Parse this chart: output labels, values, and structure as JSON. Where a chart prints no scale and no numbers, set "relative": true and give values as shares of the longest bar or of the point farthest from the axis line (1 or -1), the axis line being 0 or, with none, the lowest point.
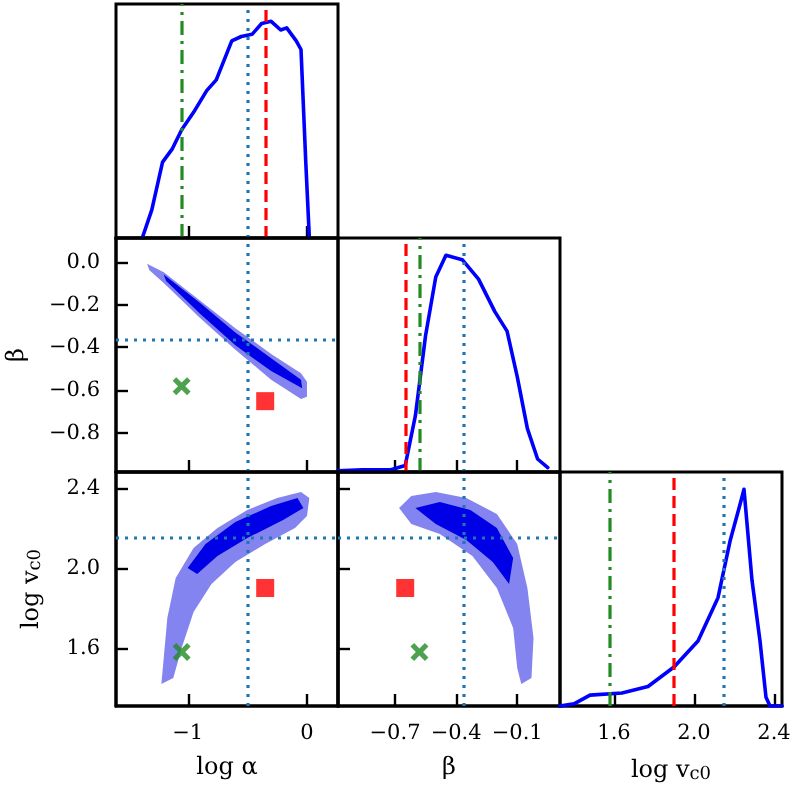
{
  "chart_data": [
    {
      "type": "line",
      "relative": true,
      "xlim": [
        -1.6,
        0.26
      ],
      "xticks": [
        -1,
        0
      ],
      "tick_labels": false,
      "x": [
        -1.38,
        -1.3,
        -1.21,
        -1.13,
        -1.05,
        -0.95,
        -0.84,
        -0.76,
        -0.63,
        -0.55,
        -0.46,
        -0.38,
        -0.3,
        -0.22,
        -0.17,
        -0.09,
        -0.05,
        -0.01,
        0.02
      ],
      "series": [
        {
          "color": "#0000ff",
          "values": [
            0,
            0.13,
            0.35,
            0.41,
            0.5,
            0.58,
            0.68,
            0.73,
            0.91,
            0.93,
            0.94,
            0.99,
            1.0,
            0.96,
            0.97,
            0.91,
            0.87,
            0.35,
            0
          ]
        }
      ],
      "ref_lines": [
        {
          "axis": "x",
          "value": -1.05,
          "color": "#228b22",
          "line_style": "dashdot"
        },
        {
          "axis": "x",
          "value": -0.5,
          "color": "#1f77b4",
          "line_style": "dotted"
        },
        {
          "axis": "x",
          "value": -0.35,
          "color": "#ff0000",
          "line_style": "dashed"
        }
      ]
    },
    {
      "type": "area",
      "ylabel": "β",
      "xlim": [
        -1.6,
        0.26
      ],
      "ylim": [
        -0.98,
        0.11
      ],
      "xticks": [
        -1,
        0
      ],
      "yticks": [
        {
          "value": 0,
          "label": "0.0"
        },
        {
          "value": -0.2,
          "label": "−0.2"
        },
        {
          "value": -0.4,
          "label": "−0.4"
        },
        {
          "value": -0.6,
          "label": "−0.6"
        },
        {
          "value": -0.8,
          "label": "−0.8"
        }
      ],
      "tick_labels": "y",
      "series": [
        {
          "type": "area",
          "color": "#8484f0",
          "x": [
            -1.34,
            -1.2,
            -0.9,
            -0.6,
            -0.3,
            -0.05,
            0.0,
            0.0,
            -0.05,
            -0.3,
            -0.6,
            -0.9,
            -1.2,
            -1.32
          ],
          "values": [
            -0.01,
            -0.05,
            -0.18,
            -0.31,
            -0.43,
            -0.52,
            -0.56,
            -0.63,
            -0.64,
            -0.55,
            -0.41,
            -0.26,
            -0.1,
            -0.04
          ]
        },
        {
          "type": "area",
          "color": "#0000e6",
          "x": [
            -1.2,
            -0.9,
            -0.6,
            -0.3,
            -0.05,
            -0.04,
            -0.3,
            -0.6,
            -0.9,
            -1.18
          ],
          "values": [
            -0.06,
            -0.19,
            -0.33,
            -0.45,
            -0.55,
            -0.59,
            -0.51,
            -0.39,
            -0.24,
            -0.09
          ]
        },
        {
          "type": "scatter",
          "marker": "cross",
          "color": "#228b22",
          "x": [
            -1.05
          ],
          "values": [
            -0.58
          ]
        },
        {
          "type": "scatter",
          "marker": "square",
          "color": "#ff0000",
          "x": [
            -0.35
          ],
          "values": [
            -0.65
          ]
        }
      ],
      "ref_lines": [
        {
          "axis": "x",
          "value": -0.5,
          "color": "#1f77b4",
          "line_style": "dotted"
        },
        {
          "axis": "y",
          "value": -0.36,
          "color": "#1f77b4",
          "line_style": "dotted"
        }
      ]
    },
    {
      "type": "line",
      "relative": true,
      "xlim": [
        -0.98,
        0.11
      ],
      "xticks": [
        -0.7,
        -0.4,
        -0.1
      ],
      "tick_labels": false,
      "x": [
        -0.98,
        -0.86,
        -0.72,
        -0.65,
        -0.6,
        -0.55,
        -0.5,
        -0.45,
        -0.37,
        -0.29,
        -0.21,
        -0.15,
        -0.1,
        -0.05,
        0.0,
        0.05
      ],
      "series": [
        {
          "color": "#0000ff",
          "values": [
            0.005,
            0.01,
            0.01,
            0.03,
            0.26,
            0.63,
            0.9,
            1.0,
            0.98,
            0.89,
            0.74,
            0.65,
            0.44,
            0.2,
            0.06,
            0.02
          ]
        }
      ],
      "ref_lines": [
        {
          "axis": "x",
          "value": -0.65,
          "color": "#ff0000",
          "line_style": "dashed"
        },
        {
          "axis": "x",
          "value": -0.58,
          "color": "#228b22",
          "line_style": "dashdot"
        },
        {
          "axis": "x",
          "value": -0.36,
          "color": "#1f77b4",
          "line_style": "dotted"
        }
      ]
    },
    {
      "type": "area",
      "xlabel": "log α",
      "ylabel": "log v$_{c0}$",
      "xlim": [
        -1.6,
        0.26
      ],
      "ylim": [
        1.31,
        2.48
      ],
      "xticks": [
        {
          "value": -1,
          "label": "−1"
        },
        0
      ],
      "yticks": [
        1.6,
        {
          "value": 2,
          "label": "2.0"
        },
        2.4
      ],
      "series": [
        {
          "type": "area",
          "color": "#8484f0",
          "x": [
            -1.22,
            -1.2,
            -1.17,
            -1.1,
            -0.95,
            -0.75,
            -0.5,
            -0.25,
            -0.05,
            0.02,
            0.0,
            -0.1,
            -0.35,
            -0.6,
            -0.8,
            -0.95,
            -1.05,
            -1.12
          ],
          "values": [
            1.42,
            1.55,
            1.75,
            1.95,
            2.1,
            2.2,
            2.29,
            2.35,
            2.38,
            2.35,
            2.26,
            2.2,
            2.12,
            2.03,
            1.92,
            1.78,
            1.6,
            1.45
          ]
        },
        {
          "type": "area",
          "color": "#0000e6",
          "x": [
            -1.0,
            -0.85,
            -0.6,
            -0.3,
            -0.08,
            -0.03,
            -0.2,
            -0.5,
            -0.75,
            -0.92
          ],
          "values": [
            2.0,
            2.12,
            2.23,
            2.31,
            2.35,
            2.3,
            2.24,
            2.15,
            2.06,
            1.97
          ]
        },
        {
          "type": "scatter",
          "marker": "cross",
          "color": "#228b22",
          "x": [
            -1.05
          ],
          "values": [
            1.58
          ]
        },
        {
          "type": "scatter",
          "marker": "square",
          "color": "#ff0000",
          "x": [
            -0.35
          ],
          "values": [
            1.9
          ]
        }
      ],
      "ref_lines": [
        {
          "axis": "x",
          "value": -0.5,
          "color": "#1f77b4",
          "line_style": "dotted"
        },
        {
          "axis": "y",
          "value": 2.15,
          "color": "#1f77b4",
          "line_style": "dotted"
        }
      ]
    },
    {
      "type": "area",
      "xlabel": "β",
      "xlim": [
        -0.98,
        0.11
      ],
      "ylim": [
        1.31,
        2.48
      ],
      "xticks": [
        {
          "value": -0.7,
          "label": "−0.7"
        },
        {
          "value": -0.4,
          "label": "−0.4"
        },
        {
          "value": -0.1,
          "label": "−0.1"
        }
      ],
      "yticks": [
        1.6,
        2.0,
        2.4
      ],
      "tick_labels": "x",
      "series": [
        {
          "type": "area",
          "color": "#8484f0",
          "x": [
            -0.68,
            -0.62,
            -0.5,
            -0.35,
            -0.2,
            -0.1,
            -0.05,
            -0.02,
            -0.03,
            -0.08,
            -0.1,
            -0.12,
            -0.2,
            -0.32,
            -0.48,
            -0.62
          ],
          "values": [
            2.3,
            2.36,
            2.38,
            2.35,
            2.27,
            2.12,
            1.9,
            1.65,
            1.45,
            1.42,
            1.5,
            1.7,
            1.9,
            2.06,
            2.17,
            2.22
          ]
        },
        {
          "type": "area",
          "color": "#0000e6",
          "x": [
            -0.6,
            -0.48,
            -0.33,
            -0.2,
            -0.12,
            -0.14,
            -0.22,
            -0.35,
            -0.5
          ],
          "values": [
            2.3,
            2.33,
            2.29,
            2.2,
            2.05,
            1.92,
            2.03,
            2.14,
            2.22
          ]
        },
        {
          "type": "scatter",
          "marker": "cross",
          "color": "#228b22",
          "x": [
            -0.58
          ],
          "values": [
            1.58
          ]
        },
        {
          "type": "scatter",
          "marker": "square",
          "color": "#ff0000",
          "x": [
            -0.65
          ],
          "values": [
            1.9
          ]
        }
      ],
      "ref_lines": [
        {
          "axis": "x",
          "value": -0.36,
          "color": "#1f77b4",
          "line_style": "dotted"
        },
        {
          "axis": "y",
          "value": 2.15,
          "color": "#1f77b4",
          "line_style": "dotted"
        }
      ]
    },
    {
      "type": "line",
      "relative": true,
      "xlabel": "log v$_{c0}$",
      "xlim": [
        1.33,
        2.44
      ],
      "xticks": [
        1.6,
        {
          "value": 2,
          "label": "2.0"
        },
        2.4
      ],
      "tick_labels": "x",
      "x": [
        1.33,
        1.4,
        1.48,
        1.64,
        1.77,
        1.9,
        2.02,
        2.12,
        2.18,
        2.23,
        2.25,
        2.29,
        2.33,
        2.36,
        2.38,
        2.44
      ],
      "series": [
        {
          "color": "#0000ff",
          "values": [
            0,
            0.01,
            0.05,
            0.06,
            0.09,
            0.18,
            0.3,
            0.5,
            0.76,
            0.93,
            1.0,
            0.58,
            0.3,
            0.04,
            0,
            0
          ]
        }
      ],
      "ref_lines": [
        {
          "axis": "x",
          "value": 1.58,
          "color": "#228b22",
          "line_style": "dashdot"
        },
        {
          "axis": "x",
          "value": 1.9,
          "color": "#ff0000",
          "line_style": "dashed"
        },
        {
          "axis": "x",
          "value": 2.15,
          "color": "#1f77b4",
          "line_style": "dotted"
        }
      ]
    }
  ]
}
